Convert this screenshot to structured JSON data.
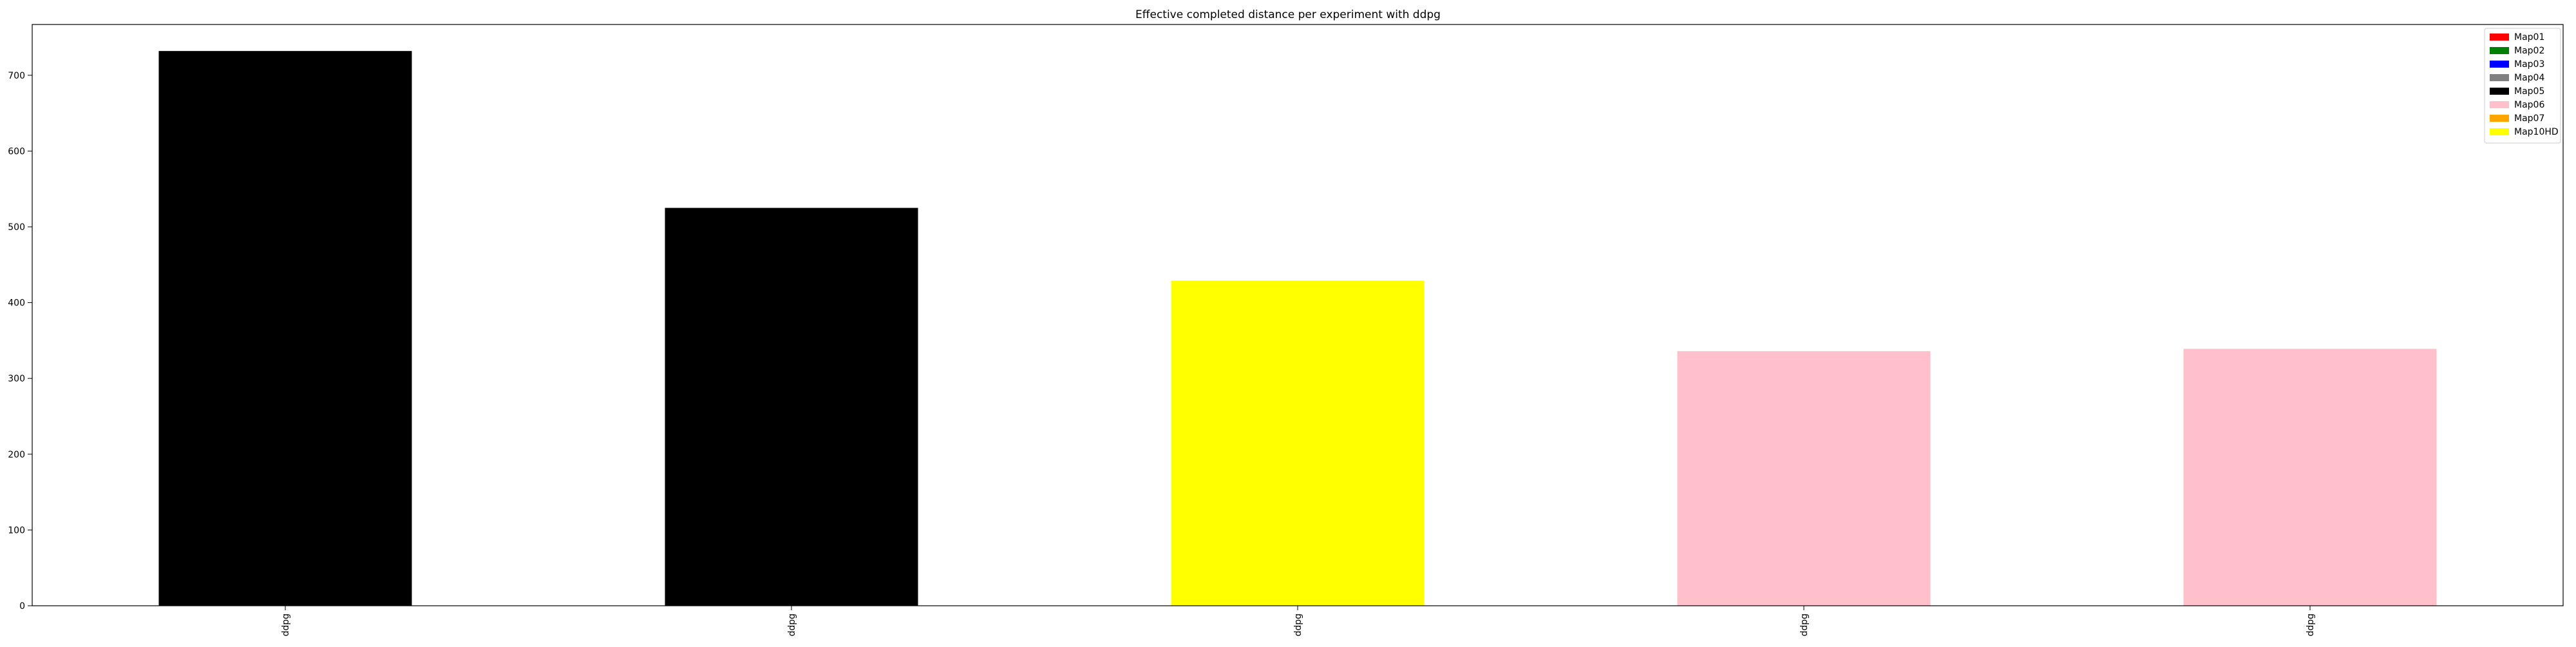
{
  "chart_data": {
    "type": "bar",
    "title": "Effective completed distance per experiment with ddpg",
    "xlabel": "",
    "ylabel": "",
    "categories": [
      "ddpg",
      "ddpg",
      "ddpg",
      "ddpg",
      "ddpg"
    ],
    "values": [
      732,
      525,
      429,
      336,
      339
    ],
    "bar_colors": [
      "#000000",
      "#000000",
      "#ffff00",
      "#ffc0cb",
      "#ffc0cb"
    ],
    "ylim": [
      0,
      767
    ],
    "yticks": [
      0,
      100,
      200,
      300,
      400,
      500,
      600,
      700
    ],
    "grid": false,
    "legend_placement": "top-right",
    "legend": [
      {
        "label": "Map01",
        "color": "#ff0000"
      },
      {
        "label": "Map02",
        "color": "#008000"
      },
      {
        "label": "Map03",
        "color": "#0000ff"
      },
      {
        "label": "Map04",
        "color": "#808080"
      },
      {
        "label": "Map05",
        "color": "#000000"
      },
      {
        "label": "Map06",
        "color": "#ffc0cb"
      },
      {
        "label": "Map07",
        "color": "#ffa500"
      },
      {
        "label": "Map10HD",
        "color": "#ffff00"
      }
    ]
  }
}
